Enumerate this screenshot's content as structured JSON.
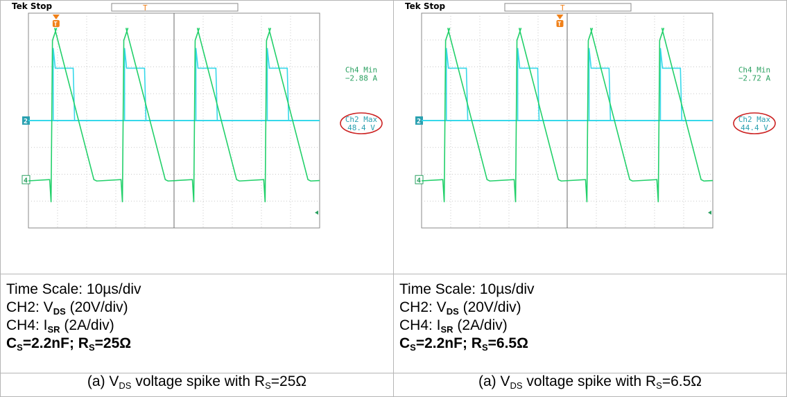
{
  "colors": {
    "ch2": "#22d06a",
    "ch4": "#36d8ea",
    "ellipse": "#cc2222",
    "trigger": "#f08018"
  },
  "chart_data": [
    {
      "type": "line",
      "header": "Tek Stop",
      "trigger_marker": "T",
      "ch2_marker": "2",
      "ch4_marker": "4",
      "readout": {
        "ch4_label": "Ch4 Min",
        "ch4_value": "−2.88 A",
        "ch2_label": "Ch2 Max",
        "ch2_value": "48.4 V"
      },
      "grid": {
        "h_divs": 10,
        "v_divs": 8
      },
      "series": [
        {
          "name": "CH2",
          "period_divs": 2.45,
          "phase_divs": 0.9
        },
        {
          "name": "CH4",
          "period_divs": 2.45,
          "phase_divs": 0.9
        }
      ],
      "info": {
        "time_scale": "Time Scale: 10µs/div",
        "ch2_prefix": "CH2: V",
        "ch2_sub": "DS",
        "ch2_suffix": " (20V/div)",
        "ch4_prefix": "CH4: I",
        "ch4_sub": "SR",
        "ch4_suffix": " (2A/div)",
        "cs_prefix": "C",
        "cs_sub": "S",
        "cs_mid": "=2.2nF; R",
        "rs_sub": "S",
        "rs_value": "=25Ω"
      },
      "caption": {
        "prefix": "(a) V",
        "sub1": "DS",
        "mid": " voltage spike with R",
        "sub2": "S",
        "value": "=25Ω"
      }
    },
    {
      "type": "line",
      "header": "Tek Stop",
      "trigger_marker": "T",
      "ch2_marker": "2",
      "ch4_marker": "4",
      "readout": {
        "ch4_label": "Ch4 Min",
        "ch4_value": "−2.72 A",
        "ch2_label": "Ch2 Max",
        "ch2_value": "44.4 V"
      },
      "grid": {
        "h_divs": 10,
        "v_divs": 8
      },
      "series": [
        {
          "name": "CH2",
          "period_divs": 2.45,
          "phase_divs": 0.9
        },
        {
          "name": "CH4",
          "period_divs": 2.45,
          "phase_divs": 0.9
        }
      ],
      "info": {
        "time_scale": "Time Scale: 10µs/div",
        "ch2_prefix": "CH2: V",
        "ch2_sub": "DS",
        "ch2_suffix": " (20V/div)",
        "ch4_prefix": "CH4: I",
        "ch4_sub": "SR",
        "ch4_suffix": " (2A/div)",
        "cs_prefix": "C",
        "cs_sub": "S",
        "cs_mid": "=2.2nF; R",
        "rs_sub": "S",
        "rs_value": "=6.5Ω"
      },
      "caption": {
        "prefix": "(a) V",
        "sub1": "DS",
        "mid": " voltage spike with R",
        "sub2": "S",
        "value": "=6.5Ω"
      }
    }
  ]
}
